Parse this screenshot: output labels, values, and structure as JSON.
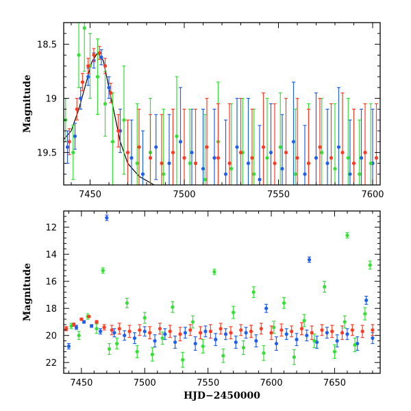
{
  "chart_data": [
    {
      "type": "scatter",
      "title": "",
      "xlabel": "",
      "ylabel": "Magnitude",
      "xlim": [
        7436,
        7604
      ],
      "ylim": [
        19.8,
        18.3
      ],
      "y_inverted": true,
      "x_ticks": [
        7450,
        7500,
        7550,
        7600
      ],
      "x_tick_labels": [
        "7450",
        "7500",
        "7550",
        "7600"
      ],
      "y_ticks": [
        18.5,
        19,
        19.5
      ],
      "y_tick_labels": [
        "18.5",
        "19",
        "19.5"
      ],
      "grid": false,
      "error_bars": true,
      "model_curve": {
        "color": "#000000",
        "x": [
          7436,
          7440,
          7444,
          7448,
          7451,
          7454,
          7457,
          7460,
          7463,
          7466,
          7470,
          7476,
          7484
        ],
        "y": [
          19.38,
          19.3,
          19.1,
          18.85,
          18.66,
          18.58,
          18.65,
          18.9,
          19.15,
          19.4,
          19.6,
          19.72,
          19.8
        ]
      },
      "series": [
        {
          "color": "#1f5ff0",
          "x": [
            7438,
            7442,
            7445,
            7449,
            7452,
            7456,
            7460,
            7466,
            7472,
            7478,
            7485,
            7492,
            7498,
            7504,
            7510,
            7516,
            7522,
            7528,
            7534,
            7540,
            7546,
            7552,
            7558,
            7564,
            7570,
            7576,
            7582,
            7588,
            7594,
            7600
          ],
          "y": [
            19.45,
            19.35,
            19.0,
            18.8,
            18.65,
            18.62,
            18.9,
            19.3,
            19.55,
            19.7,
            19.45,
            19.6,
            19.4,
            19.5,
            19.65,
            19.55,
            19.7,
            19.45,
            19.6,
            19.75,
            19.5,
            19.65,
            19.4,
            19.7,
            19.55,
            19.6,
            19.45,
            19.7,
            19.55,
            19.6
          ],
          "err": [
            0.15,
            0.12,
            0.1,
            0.08,
            0.07,
            0.07,
            0.1,
            0.2,
            0.35,
            0.4,
            0.3,
            0.45,
            0.5,
            0.4,
            0.55,
            0.45,
            0.5,
            0.45,
            0.6,
            0.5,
            0.45,
            0.5,
            0.55,
            0.45,
            0.6,
            0.5,
            0.55,
            0.5,
            0.45,
            0.5
          ]
        },
        {
          "color": "#33e033",
          "x": [
            7437,
            7441,
            7444,
            7447,
            7450,
            7454,
            7458,
            7462,
            7468,
            7475,
            7482,
            7489,
            7496,
            7503,
            7511,
            7518,
            7525,
            7531,
            7537,
            7544,
            7551,
            7559,
            7566,
            7573,
            7580,
            7587,
            7593,
            7599
          ],
          "y": [
            19.2,
            19.5,
            18.6,
            18.35,
            18.7,
            18.8,
            19.05,
            19.4,
            19.2,
            19.6,
            19.5,
            19.7,
            19.35,
            19.6,
            19.75,
            19.4,
            19.65,
            19.5,
            19.7,
            19.55,
            19.45,
            19.7,
            19.6,
            19.5,
            19.65,
            19.55,
            19.7,
            19.6
          ],
          "err": [
            0.2,
            0.25,
            0.3,
            0.4,
            0.3,
            0.35,
            0.3,
            0.45,
            0.5,
            0.55,
            0.5,
            0.6,
            0.55,
            0.5,
            0.6,
            0.55,
            0.6,
            0.5,
            0.6,
            0.55,
            0.5,
            0.6,
            0.55,
            0.5,
            0.6,
            0.55,
            0.5,
            0.55
          ]
        },
        {
          "color": "#ff3a22",
          "x": [
            7439,
            7443,
            7446,
            7449,
            7452,
            7455,
            7458,
            7461,
            7465,
            7470,
            7476,
            7482,
            7488,
            7494,
            7500,
            7506,
            7512,
            7518,
            7524,
            7530,
            7536,
            7542,
            7548,
            7554,
            7560,
            7566,
            7572,
            7578,
            7584,
            7590,
            7596,
            7602
          ],
          "y": [
            19.4,
            19.1,
            18.85,
            18.7,
            18.6,
            18.58,
            18.7,
            18.95,
            19.3,
            19.5,
            19.45,
            19.55,
            19.6,
            19.5,
            19.55,
            19.6,
            19.45,
            19.55,
            19.6,
            19.5,
            19.55,
            19.45,
            19.6,
            19.5,
            19.55,
            19.6,
            19.45,
            19.55,
            19.5,
            19.6,
            19.5,
            19.55
          ],
          "err": [
            0.12,
            0.1,
            0.08,
            0.07,
            0.06,
            0.06,
            0.07,
            0.09,
            0.15,
            0.3,
            0.35,
            0.4,
            0.45,
            0.4,
            0.45,
            0.5,
            0.45,
            0.5,
            0.55,
            0.5,
            0.45,
            0.5,
            0.55,
            0.5,
            0.55,
            0.5,
            0.45,
            0.5,
            0.55,
            0.5,
            0.45,
            0.5
          ]
        }
      ]
    },
    {
      "type": "scatter",
      "title": "",
      "xlabel": "HJD−2450000",
      "ylabel": "Magnitude",
      "xlim": [
        7436,
        7686
      ],
      "ylim": [
        22.8,
        10.8
      ],
      "y_inverted": true,
      "x_ticks": [
        7450,
        7500,
        7550,
        7600,
        7650
      ],
      "x_tick_labels": [
        "7450",
        "7500",
        "7550",
        "7600",
        "7650"
      ],
      "y_ticks": [
        12,
        14,
        16,
        18,
        20,
        22
      ],
      "y_tick_labels": [
        "12",
        "14",
        "16",
        "18",
        "20",
        "22"
      ],
      "grid": false,
      "error_bars": true,
      "series": [
        {
          "color": "#1f5ff0",
          "x": [
            7440,
            7446,
            7452,
            7458,
            7465,
            7470,
            7476,
            7484,
            7492,
            7500,
            7508,
            7516,
            7524,
            7532,
            7540,
            7548,
            7556,
            7564,
            7572,
            7580,
            7588,
            7596,
            7604,
            7612,
            7620,
            7628,
            7630,
            7636,
            7644,
            7652,
            7660,
            7668,
            7675,
            7680
          ],
          "y": [
            20.8,
            19.4,
            19.0,
            19.3,
            19.7,
            11.3,
            19.8,
            20.0,
            20.2,
            19.7,
            20.4,
            19.9,
            20.5,
            19.8,
            20.6,
            19.7,
            20.3,
            19.9,
            20.5,
            19.8,
            20.4,
            18.0,
            20.6,
            19.9,
            20.3,
            20.0,
            14.4,
            20.5,
            19.8,
            20.4,
            19.9,
            20.6,
            17.4,
            20.2
          ],
          "err": [
            0.2,
            0.15,
            0.1,
            0.1,
            0.2,
            0.2,
            0.3,
            0.35,
            0.4,
            0.35,
            0.45,
            0.4,
            0.45,
            0.4,
            0.5,
            0.4,
            0.45,
            0.4,
            0.45,
            0.4,
            0.45,
            0.3,
            0.5,
            0.4,
            0.45,
            0.4,
            0.2,
            0.45,
            0.4,
            0.45,
            0.4,
            0.5,
            0.3,
            0.4
          ]
        },
        {
          "color": "#33e033",
          "x": [
            7442,
            7448,
            7455,
            7462,
            7467,
            7472,
            7478,
            7486,
            7494,
            7500,
            7506,
            7514,
            7522,
            7530,
            7538,
            7546,
            7555,
            7562,
            7570,
            7578,
            7586,
            7594,
            7602,
            7610,
            7618,
            7626,
            7634,
            7642,
            7650,
            7658,
            7660,
            7666,
            7674,
            7678
          ],
          "y": [
            19.3,
            20.0,
            18.6,
            19.5,
            15.2,
            21.0,
            20.6,
            17.6,
            21.2,
            18.7,
            21.4,
            20.2,
            17.9,
            21.8,
            19.0,
            20.8,
            15.3,
            21.5,
            18.3,
            20.9,
            16.8,
            21.3,
            19.4,
            17.6,
            21.6,
            18.9,
            20.4,
            16.4,
            21.2,
            19.0,
            12.6,
            20.7,
            18.4,
            14.8
          ],
          "err": [
            0.2,
            0.3,
            0.2,
            0.35,
            0.2,
            0.4,
            0.4,
            0.35,
            0.45,
            0.4,
            0.5,
            0.45,
            0.4,
            0.55,
            0.45,
            0.5,
            0.2,
            0.5,
            0.45,
            0.5,
            0.4,
            0.55,
            0.45,
            0.4,
            0.55,
            0.45,
            0.5,
            0.4,
            0.5,
            0.45,
            0.2,
            0.5,
            0.45,
            0.3
          ]
        },
        {
          "color": "#ff3a22",
          "x": [
            7438,
            7444,
            7450,
            7456,
            7462,
            7468,
            7474,
            7480,
            7488,
            7496,
            7504,
            7512,
            7520,
            7528,
            7536,
            7544,
            7552,
            7560,
            7568,
            7576,
            7584,
            7592,
            7600,
            7608,
            7616,
            7624,
            7632,
            7640,
            7648,
            7656,
            7664,
            7672,
            7680
          ],
          "y": [
            19.5,
            19.2,
            18.8,
            18.6,
            19.0,
            19.4,
            19.6,
            19.5,
            19.7,
            19.6,
            19.8,
            19.5,
            19.7,
            19.9,
            19.6,
            19.8,
            19.7,
            19.5,
            19.8,
            19.6,
            19.7,
            19.5,
            19.8,
            19.6,
            19.7,
            19.5,
            19.8,
            19.6,
            19.7,
            19.8,
            19.6,
            19.7,
            19.6
          ],
          "err": [
            0.15,
            0.12,
            0.08,
            0.06,
            0.1,
            0.2,
            0.35,
            0.4,
            0.45,
            0.4,
            0.45,
            0.4,
            0.45,
            0.5,
            0.4,
            0.45,
            0.5,
            0.4,
            0.45,
            0.4,
            0.45,
            0.4,
            0.5,
            0.45,
            0.4,
            0.45,
            0.5,
            0.4,
            0.45,
            0.5,
            0.4,
            0.45,
            0.4
          ]
        }
      ]
    }
  ]
}
